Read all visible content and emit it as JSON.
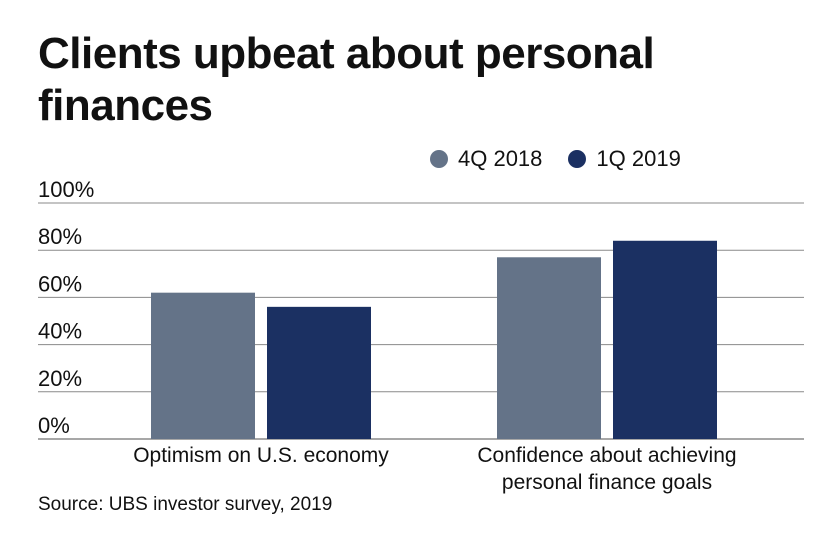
{
  "title": "Clients upbeat about personal finances",
  "source": "Source: UBS investor survey, 2019",
  "colors": {
    "series1": "#647388",
    "series2": "#1b3062",
    "grid": "#8a8a8a"
  },
  "chart_data": {
    "type": "bar",
    "title": "Clients upbeat about personal finances",
    "categories": [
      [
        "Optimism on U.S. economy"
      ],
      [
        "Confidence about achieving",
        "personal finance goals"
      ]
    ],
    "series": [
      {
        "name": "4Q 2018",
        "color": "#647388",
        "values": [
          62,
          77
        ]
      },
      {
        "name": "1Q 2019",
        "color": "#1b3062",
        "values": [
          56,
          84
        ]
      }
    ],
    "ylim": [
      0,
      100
    ],
    "yticks": [
      0,
      20,
      40,
      60,
      80,
      100
    ],
    "ytick_labels": [
      "0%",
      "20%",
      "40%",
      "60%",
      "80%",
      "100%"
    ],
    "legend_position": "top-right",
    "grid": true,
    "xlabel": "",
    "ylabel": ""
  }
}
